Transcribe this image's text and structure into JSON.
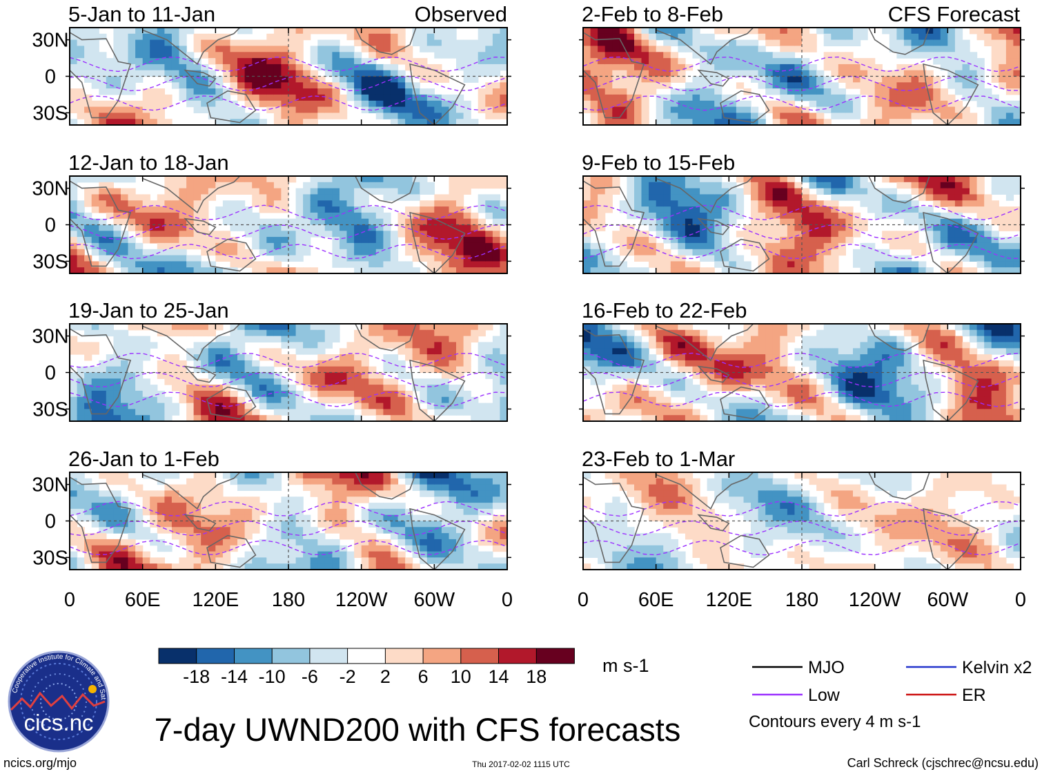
{
  "figure": {
    "title": "7-day UWND200 with CFS forecasts",
    "site": "ncics.org/mjo",
    "timestamp": "Thu 2017-02-02 1115 UTC",
    "credit": "Carl Schreck (cjschrec@ncsu.edu)",
    "logo_text": "cics.nc",
    "logo_ring_text": "Cooperative Institute for Climate and Satellites"
  },
  "chart_data": {
    "type": "heatmap",
    "variable": "UWND200",
    "units_label": "m s-1",
    "column_headers": [
      "Observed",
      "CFS Forecast"
    ],
    "panels": [
      {
        "title": "5-Jan to 11-Jan",
        "column": 0,
        "row": 0,
        "source": "Observed"
      },
      {
        "title": "12-Jan to 18-Jan",
        "column": 0,
        "row": 1,
        "source": "Observed"
      },
      {
        "title": "19-Jan to 25-Jan",
        "column": 0,
        "row": 2,
        "source": "Observed"
      },
      {
        "title": "26-Jan to 1-Feb",
        "column": 0,
        "row": 3,
        "source": "Observed"
      },
      {
        "title": "2-Feb to 8-Feb",
        "column": 1,
        "row": 0,
        "source": "CFS Forecast"
      },
      {
        "title": "9-Feb to 15-Feb",
        "column": 1,
        "row": 1,
        "source": "CFS Forecast"
      },
      {
        "title": "16-Feb to 22-Feb",
        "column": 1,
        "row": 2,
        "source": "CFS Forecast"
      },
      {
        "title": "23-Feb to 1-Mar",
        "column": 1,
        "row": 3,
        "source": "CFS Forecast"
      }
    ],
    "x_ticks": [
      "0",
      "60E",
      "120E",
      "180",
      "120W",
      "60W",
      "0"
    ],
    "x_tick_lons": [
      0,
      60,
      120,
      180,
      240,
      300,
      360
    ],
    "y_ticks": [
      "30N",
      "0",
      "30S"
    ],
    "y_tick_lats": [
      30,
      0,
      -30
    ],
    "xlim": [
      0,
      360
    ],
    "ylim": [
      -40,
      40
    ],
    "colorbar": {
      "tick_labels": [
        "-18",
        "-14",
        "-10",
        "-6",
        "-2",
        "2",
        "6",
        "10",
        "14",
        "18"
      ],
      "levels": [
        -18,
        -14,
        -10,
        -6,
        -2,
        2,
        6,
        10,
        14,
        18
      ],
      "colors": [
        "#08306b",
        "#2166ac",
        "#4393c3",
        "#92c5de",
        "#d1e5f0",
        "#ffffff",
        "#fddbc7",
        "#f4a582",
        "#d6604d",
        "#b2182b",
        "#67001f"
      ]
    },
    "legend": [
      {
        "label": "MJO",
        "color": "#000000"
      },
      {
        "label": "Kelvin x2",
        "color": "#2233cc"
      },
      {
        "label": "Low",
        "color": "#9b30ff"
      },
      {
        "label": "ER",
        "color": "#cc1111"
      }
    ],
    "contour_note": "Contours every 4 m s-1"
  }
}
